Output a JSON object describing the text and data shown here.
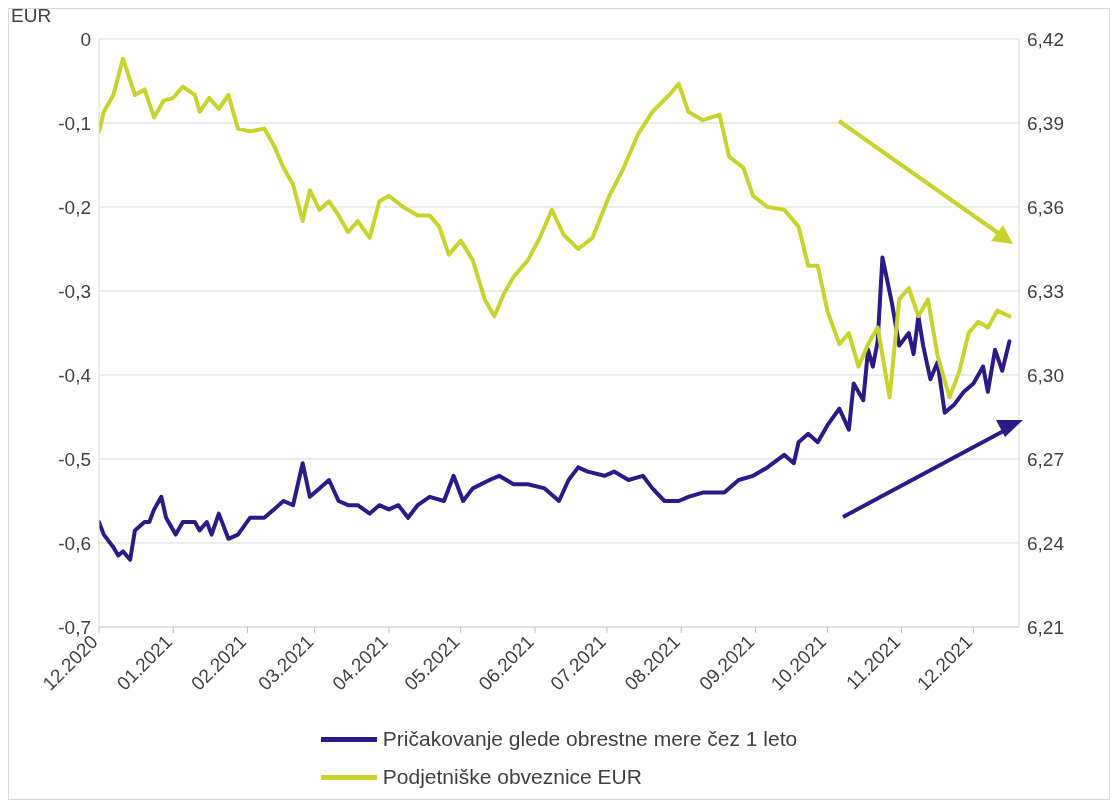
{
  "chart_data": {
    "type": "line",
    "annotations": [
      "EUR"
    ],
    "xlim": [
      "2020-12-01",
      "2021-12-20"
    ],
    "xticks": [
      {
        "value": "2020-12-01",
        "label": "12.2020"
      },
      {
        "value": "2021-01-01",
        "label": "01.2021"
      },
      {
        "value": "2021-02-01",
        "label": "02.2021"
      },
      {
        "value": "2021-03-01",
        "label": "03.2021"
      },
      {
        "value": "2021-04-01",
        "label": "04.2021"
      },
      {
        "value": "2021-05-01",
        "label": "05.2021"
      },
      {
        "value": "2021-06-01",
        "label": "06.2021"
      },
      {
        "value": "2021-07-01",
        "label": "07.2021"
      },
      {
        "value": "2021-08-01",
        "label": "08.2021"
      },
      {
        "value": "2021-09-01",
        "label": "09.2021"
      },
      {
        "value": "2021-10-01",
        "label": "10.2021"
      },
      {
        "value": "2021-11-01",
        "label": "11.2021"
      },
      {
        "value": "2021-12-01",
        "label": "12.2021"
      }
    ],
    "ylim": [
      -0.7,
      0
    ],
    "yticks": [
      {
        "value": 0,
        "label": "0"
      },
      {
        "value": -0.1,
        "label": "-0,1"
      },
      {
        "value": -0.2,
        "label": "-0,2"
      },
      {
        "value": -0.3,
        "label": "-0,3"
      },
      {
        "value": -0.4,
        "label": "-0,4"
      },
      {
        "value": -0.5,
        "label": "-0,5"
      },
      {
        "value": -0.6,
        "label": "-0,6"
      },
      {
        "value": -0.7,
        "label": "-0,7"
      }
    ],
    "y2lim": [
      6.21,
      6.42
    ],
    "y2ticks": [
      {
        "value": 6.42,
        "label": "6,42"
      },
      {
        "value": 6.39,
        "label": "6,39"
      },
      {
        "value": 6.36,
        "label": "6,36"
      },
      {
        "value": 6.33,
        "label": "6,33"
      },
      {
        "value": 6.3,
        "label": "6,30"
      },
      {
        "value": 6.27,
        "label": "6,27"
      },
      {
        "value": 6.24,
        "label": "6,24"
      },
      {
        "value": 6.21,
        "label": "6,21"
      }
    ],
    "grid": "y",
    "legend": "bottom",
    "marker": "none",
    "line_style": "solid",
    "series": [
      {
        "name": "Pričakovanje glede obrestne mere čez 1 leto",
        "color": "#2e1a87",
        "x": [
          "2020-12-01",
          "2020-12-03",
          "2020-12-07",
          "2020-12-09",
          "2020-12-11",
          "2020-12-14",
          "2020-12-16",
          "2020-12-20",
          "2020-12-22",
          "2020-12-24",
          "2020-12-27",
          "2020-12-29",
          "2021-01-02",
          "2021-01-05",
          "2021-01-10",
          "2021-01-12",
          "2021-01-15",
          "2021-01-17",
          "2021-01-20",
          "2021-01-24",
          "2021-01-28",
          "2021-02-02",
          "2021-02-08",
          "2021-02-12",
          "2021-02-16",
          "2021-02-20",
          "2021-02-24",
          "2021-02-27",
          "2021-03-03",
          "2021-03-07",
          "2021-03-11",
          "2021-03-15",
          "2021-03-19",
          "2021-03-24",
          "2021-03-28",
          "2021-04-01",
          "2021-04-05",
          "2021-04-09",
          "2021-04-13",
          "2021-04-18",
          "2021-04-24",
          "2021-04-28",
          "2021-05-02",
          "2021-05-06",
          "2021-05-13",
          "2021-05-17",
          "2021-05-23",
          "2021-05-29",
          "2021-06-05",
          "2021-06-11",
          "2021-06-15",
          "2021-06-19",
          "2021-06-23",
          "2021-06-30",
          "2021-07-04",
          "2021-07-10",
          "2021-07-16",
          "2021-07-20",
          "2021-07-25",
          "2021-07-31",
          "2021-08-04",
          "2021-08-10",
          "2021-08-19",
          "2021-08-25",
          "2021-08-31",
          "2021-09-06",
          "2021-09-13",
          "2021-09-17",
          "2021-09-19",
          "2021-09-23",
          "2021-09-27",
          "2021-10-01",
          "2021-10-06",
          "2021-10-10",
          "2021-10-12",
          "2021-10-16",
          "2021-10-18",
          "2021-10-20",
          "2021-10-22",
          "2021-10-24",
          "2021-10-28",
          "2021-10-31",
          "2021-11-04",
          "2021-11-06",
          "2021-11-08",
          "2021-11-10",
          "2021-11-13",
          "2021-11-16",
          "2021-11-19",
          "2021-11-23",
          "2021-11-27",
          "2021-12-01",
          "2021-12-05",
          "2021-12-07",
          "2021-12-10",
          "2021-12-13",
          "2021-12-16"
        ],
        "values": [
          -0.575,
          -0.59,
          -0.605,
          -0.615,
          -0.61,
          -0.62,
          -0.585,
          -0.575,
          -0.575,
          -0.56,
          -0.545,
          -0.57,
          -0.59,
          -0.575,
          -0.575,
          -0.585,
          -0.575,
          -0.59,
          -0.565,
          -0.595,
          -0.59,
          -0.57,
          -0.57,
          -0.56,
          -0.55,
          -0.555,
          -0.505,
          -0.545,
          -0.535,
          -0.525,
          -0.55,
          -0.555,
          -0.555,
          -0.565,
          -0.555,
          -0.56,
          -0.555,
          -0.57,
          -0.555,
          -0.545,
          -0.55,
          -0.52,
          -0.55,
          -0.535,
          -0.525,
          -0.52,
          -0.53,
          -0.53,
          -0.535,
          -0.55,
          -0.525,
          -0.51,
          -0.515,
          -0.52,
          -0.515,
          -0.525,
          -0.52,
          -0.535,
          -0.55,
          -0.55,
          -0.545,
          -0.54,
          -0.54,
          -0.525,
          -0.52,
          -0.51,
          -0.495,
          -0.505,
          -0.48,
          -0.47,
          -0.48,
          -0.46,
          -0.44,
          -0.465,
          -0.41,
          -0.43,
          -0.37,
          -0.39,
          -0.36,
          -0.26,
          -0.315,
          -0.365,
          -0.35,
          -0.375,
          -0.33,
          -0.365,
          -0.405,
          -0.385,
          -0.445,
          -0.435,
          -0.42,
          -0.41,
          -0.39,
          -0.42,
          -0.37,
          -0.395,
          -0.36
        ]
      },
      {
        "name": "Podjetniške obveznice EUR",
        "color": "#c8d42e",
        "axis": "y2",
        "x": [
          "2020-12-01",
          "2020-12-03",
          "2020-12-07",
          "2020-12-11",
          "2020-12-16",
          "2020-12-20",
          "2020-12-24",
          "2020-12-28",
          "2021-01-01",
          "2021-01-05",
          "2021-01-10",
          "2021-01-12",
          "2021-01-16",
          "2021-01-20",
          "2021-01-24",
          "2021-01-28",
          "2021-02-02",
          "2021-02-08",
          "2021-02-12",
          "2021-02-16",
          "2021-02-20",
          "2021-02-24",
          "2021-02-27",
          "2021-03-03",
          "2021-03-07",
          "2021-03-11",
          "2021-03-15",
          "2021-03-19",
          "2021-03-24",
          "2021-03-28",
          "2021-04-01",
          "2021-04-07",
          "2021-04-13",
          "2021-04-18",
          "2021-04-22",
          "2021-04-26",
          "2021-05-01",
          "2021-05-06",
          "2021-05-11",
          "2021-05-15",
          "2021-05-19",
          "2021-05-23",
          "2021-05-29",
          "2021-06-03",
          "2021-06-08",
          "2021-06-13",
          "2021-06-19",
          "2021-06-25",
          "2021-07-02",
          "2021-07-08",
          "2021-07-14",
          "2021-07-20",
          "2021-07-27",
          "2021-07-31",
          "2021-08-04",
          "2021-08-10",
          "2021-08-17",
          "2021-08-21",
          "2021-08-27",
          "2021-08-31",
          "2021-09-06",
          "2021-09-13",
          "2021-09-19",
          "2021-09-23",
          "2021-09-27",
          "2021-10-01",
          "2021-10-06",
          "2021-10-10",
          "2021-10-14",
          "2021-10-18",
          "2021-10-22",
          "2021-10-27",
          "2021-10-31",
          "2021-11-04",
          "2021-11-08",
          "2021-11-12",
          "2021-11-16",
          "2021-11-21",
          "2021-11-25",
          "2021-11-29",
          "2021-12-03",
          "2021-12-07",
          "2021-12-11",
          "2021-12-16"
        ],
        "values": [
          6.387,
          6.394,
          6.4,
          6.413,
          6.4,
          6.402,
          6.392,
          6.398,
          6.399,
          6.403,
          6.4,
          6.394,
          6.399,
          6.395,
          6.4,
          6.388,
          6.387,
          6.388,
          6.382,
          6.374,
          6.368,
          6.355,
          6.366,
          6.359,
          6.362,
          6.357,
          6.351,
          6.355,
          6.349,
          6.362,
          6.364,
          6.36,
          6.357,
          6.357,
          6.353,
          6.343,
          6.348,
          6.341,
          6.327,
          6.321,
          6.329,
          6.335,
          6.341,
          6.349,
          6.359,
          6.35,
          6.345,
          6.349,
          6.364,
          6.374,
          6.386,
          6.394,
          6.4,
          6.404,
          6.394,
          6.391,
          6.393,
          6.378,
          6.374,
          6.364,
          6.36,
          6.359,
          6.353,
          6.339,
          6.339,
          6.323,
          6.311,
          6.315,
          6.303,
          6.311,
          6.317,
          6.292,
          6.327,
          6.331,
          6.321,
          6.327,
          6.307,
          6.292,
          6.301,
          6.315,
          6.319,
          6.317,
          6.323,
          6.321
        ]
      }
    ]
  }
}
